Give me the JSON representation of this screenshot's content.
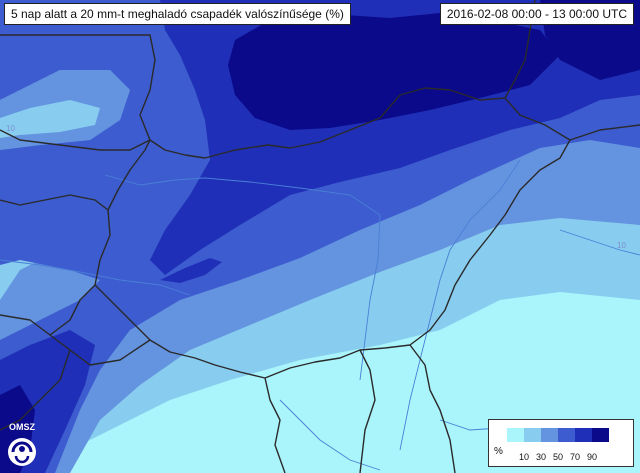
{
  "header": {
    "title": "5 nap alatt a 20 mm-t meghaladó csapadék valószínűsége (%)",
    "period": "2016-02-08 00:00 - 13 00:00 UTC"
  },
  "map": {
    "contour_labels": [
      "10",
      "10"
    ],
    "colors": {
      "band_0_10": "#aaf4fb",
      "band_10_30": "#88cdef",
      "band_30_50": "#6494e0",
      "band_50_70": "#3c5ccf",
      "band_70_90": "#1f2fb7",
      "band_90_plus": "#0a0a8a",
      "border": "#2a2a2a",
      "river": "#4a7fd6"
    }
  },
  "legend": {
    "unit": "%",
    "ticks": [
      "10",
      "30",
      "50",
      "70",
      "90"
    ],
    "colors": [
      "#aaf4fb",
      "#88cdef",
      "#6494e0",
      "#3c5ccf",
      "#1f2fb7",
      "#0a0a8a"
    ]
  },
  "logo": {
    "text": "OMSZ"
  }
}
